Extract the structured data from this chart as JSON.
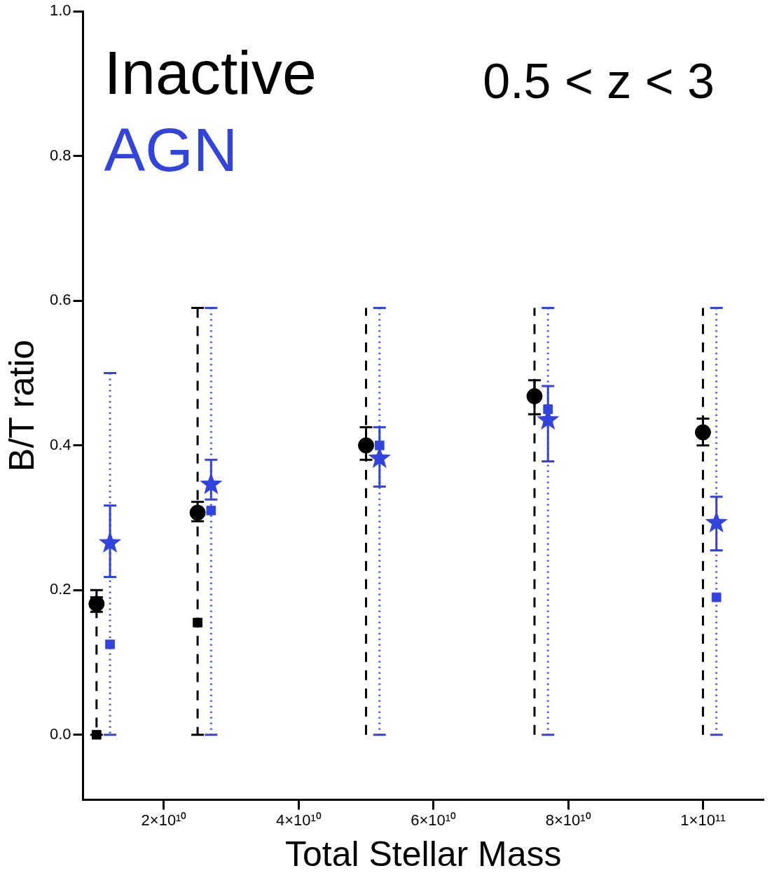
{
  "chart_data": {
    "type": "scatter",
    "xlabel": "Total Stellar Mass",
    "ylabel": "B/T ratio",
    "annotations": [
      "0.5 < z < 3"
    ],
    "xlim": [
      8000000000,
      109000000000
    ],
    "xticks": [
      {
        "value": 20000000000,
        "label": "2×10¹⁰"
      },
      {
        "value": 40000000000,
        "label": "4×10¹⁰"
      },
      {
        "value": 60000000000,
        "label": "6×10¹⁰"
      },
      {
        "value": 80000000000,
        "label": "8×10¹⁰"
      },
      {
        "value": 100000000000,
        "label": "1×10¹¹"
      }
    ],
    "ylim": [
      -0.09,
      1.0
    ],
    "yticks": [
      {
        "value": 0,
        "label": "0.0"
      },
      {
        "value": 0.2,
        "label": "0.2"
      },
      {
        "value": 0.4,
        "label": "0.4"
      },
      {
        "value": 0.6,
        "label": "0.6"
      },
      {
        "value": 0.8,
        "label": "0.8"
      },
      {
        "value": 1.0,
        "label": "1.0"
      }
    ],
    "grid": false,
    "legend": "top left",
    "series": [
      {
        "type": "scatter",
        "marker": "square",
        "line_style": "dashed",
        "color": "#000000",
        "x": [
          10000000000,
          25000000000
        ],
        "values": [
          0.0,
          0.155
        ],
        "errors": [
          [
            0,
            0.2
          ],
          [
            0,
            0.59
          ]
        ]
      },
      {
        "type": "line",
        "line_style": "dashed",
        "color": "#000000",
        "x": [
          50000000000,
          50000000000
        ],
        "values": [
          0,
          0.59
        ]
      },
      {
        "type": "line",
        "line_style": "dashed",
        "color": "#000000",
        "x": [
          75000000000,
          75000000000
        ],
        "values": [
          0,
          0.59
        ]
      },
      {
        "type": "line",
        "line_style": "dashed",
        "color": "#000000",
        "x": [
          100000000000,
          100000000000
        ],
        "values": [
          0,
          0.59
        ]
      },
      {
        "type": "scatter",
        "marker": "square",
        "line_style": "dotted",
        "color": "#3344dd",
        "x": [
          12000000000,
          27000000000,
          52000000000,
          77000000000,
          102000000000
        ],
        "values": [
          0.125,
          0.31,
          0.4,
          0.45,
          0.19
        ],
        "errors": [
          [
            0,
            0.5
          ],
          [
            0,
            0.59
          ],
          [
            0,
            0.59
          ],
          [
            0,
            0.59
          ],
          [
            0,
            0.59
          ]
        ]
      },
      {
        "type": "scatter",
        "name": "Inactive",
        "marker": "circle",
        "line_style": "solid",
        "color": "#000000",
        "x": [
          10000000000,
          25000000000,
          50000000000,
          75000000000,
          100000000000
        ],
        "values": [
          0.181,
          0.307,
          0.4,
          0.468,
          0.418
        ],
        "errors": [
          [
            0.17,
            0.19
          ],
          [
            0.295,
            0.322
          ],
          [
            0.38,
            0.425
          ],
          [
            0.443,
            0.49
          ],
          [
            0.4,
            0.437
          ]
        ]
      },
      {
        "type": "scatter",
        "name": "AGN",
        "marker": "star",
        "line_style": "solid",
        "color": "#3344dd",
        "x": [
          12000000000,
          27000000000,
          52000000000,
          77000000000,
          102000000000
        ],
        "values": [
          0.265,
          0.346,
          0.382,
          0.435,
          0.293
        ],
        "errors": [
          [
            0.218,
            0.317
          ],
          [
            0.325,
            0.38
          ],
          [
            0.343,
            0.425
          ],
          [
            0.378,
            0.482
          ],
          [
            0.255,
            0.329
          ]
        ]
      }
    ]
  }
}
